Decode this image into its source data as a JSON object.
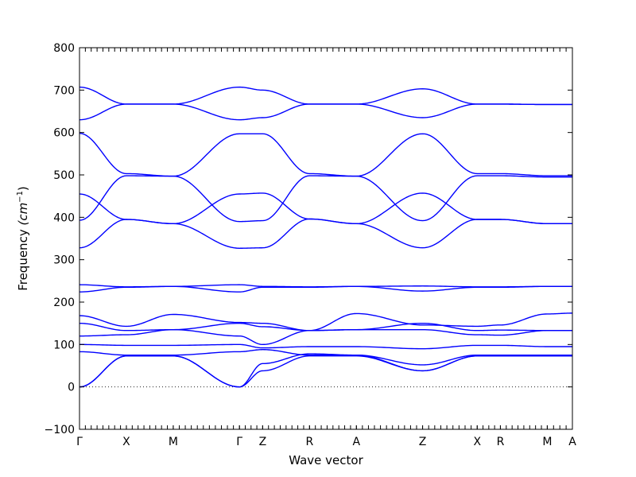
{
  "chart_data": {
    "type": "line",
    "title": "",
    "xlabel": "Wave vector",
    "ylabel": "Frequency",
    "ylabel_unit": "(cm",
    "ylabel_exp": "−1",
    "ylabel_close": ")",
    "ylim": [
      -100,
      800
    ],
    "yticks": [
      -100,
      0,
      100,
      200,
      300,
      400,
      500,
      600,
      700,
      800
    ],
    "zero_line": true,
    "grid": false,
    "legend": "none",
    "line_color": "#0000ff",
    "xlim": [
      0,
      10.2
    ],
    "high_symmetry_points": [
      {
        "label": "Γ",
        "x": 0.0
      },
      {
        "label": "X",
        "x": 0.97
      },
      {
        "label": "M",
        "x": 1.94
      },
      {
        "label": "Γ",
        "x": 3.31
      },
      {
        "label": "Z",
        "x": 3.79
      },
      {
        "label": "R",
        "x": 4.76
      },
      {
        "label": "A",
        "x": 5.73
      },
      {
        "label": "Z",
        "x": 7.1
      },
      {
        "label": "X",
        "x": 8.23
      },
      {
        "label": "R",
        "x": 8.71
      },
      {
        "label": "M",
        "x": 9.68
      },
      {
        "label": "A",
        "x": 10.2
      }
    ],
    "bands": [
      {
        "name": "",
        "x": [
          0,
          0.97,
          1.94,
          3.31,
          3.79,
          4.76,
          5.73,
          7.1,
          8.23,
          8.71,
          9.68,
          10.2
        ],
        "y": [
          707,
          667,
          667,
          707,
          700,
          667,
          667,
          703,
          667,
          667,
          666,
          666
        ]
      },
      {
        "name": "",
        "x": [
          0,
          0.97,
          1.94,
          3.31,
          3.79,
          4.76,
          5.73,
          7.1,
          8.23,
          8.71,
          9.68,
          10.2
        ],
        "y": [
          630,
          667,
          667,
          630,
          635,
          667,
          667,
          635,
          667,
          667,
          666,
          666
        ]
      },
      {
        "name": "",
        "x": [
          0,
          0.97,
          1.94,
          3.31,
          3.79,
          4.76,
          5.73,
          7.1,
          8.23,
          8.71,
          9.68,
          10.2
        ],
        "y": [
          598,
          503,
          497,
          597,
          597,
          503,
          497,
          597,
          503,
          503,
          498,
          498
        ]
      },
      {
        "name": "",
        "x": [
          0,
          0.97,
          1.94,
          3.31,
          3.79,
          4.76,
          5.73,
          7.1,
          8.23,
          8.71,
          9.68,
          10.2
        ],
        "y": [
          393,
          498,
          497,
          390,
          392,
          498,
          497,
          392,
          498,
          498,
          495,
          495
        ]
      },
      {
        "name": "",
        "x": [
          0,
          0.97,
          1.94,
          3.31,
          3.79,
          4.76,
          5.73,
          7.1,
          8.23,
          8.71,
          9.68,
          10.2
        ],
        "y": [
          455,
          395,
          385,
          455,
          457,
          396,
          385,
          457,
          395,
          395,
          385,
          385
        ]
      },
      {
        "name": "",
        "x": [
          0,
          0.97,
          1.94,
          3.31,
          3.79,
          4.76,
          5.73,
          7.1,
          8.23,
          8.71,
          9.68,
          10.2
        ],
        "y": [
          328,
          395,
          385,
          327,
          328,
          396,
          385,
          328,
          395,
          395,
          385,
          385
        ]
      },
      {
        "name": "",
        "x": [
          0,
          0.97,
          1.94,
          3.31,
          3.79,
          4.76,
          5.73,
          7.1,
          8.23,
          8.71,
          9.68,
          10.2
        ],
        "y": [
          241,
          236,
          237,
          241,
          237,
          236,
          237,
          238,
          236,
          236,
          237,
          237
        ]
      },
      {
        "name": "",
        "x": [
          0,
          0.97,
          1.94,
          3.31,
          3.79,
          4.76,
          5.73,
          7.1,
          8.23,
          8.71,
          9.68,
          10.2
        ],
        "y": [
          224,
          235,
          237,
          224,
          235,
          235,
          237,
          226,
          235,
          235,
          237,
          237
        ]
      },
      {
        "name": "",
        "x": [
          0,
          0.97,
          1.94,
          3.31,
          3.79,
          4.76,
          5.73,
          7.1,
          8.23,
          8.71,
          9.68,
          10.2
        ],
        "y": [
          168,
          143,
          171,
          152,
          150,
          133,
          173,
          146,
          143,
          146,
          172,
          174
        ]
      },
      {
        "name": "",
        "x": [
          0,
          0.97,
          1.94,
          3.31,
          3.79,
          4.76,
          5.73,
          7.1,
          8.23,
          8.71,
          9.68,
          10.2
        ],
        "y": [
          150,
          133,
          135,
          150,
          142,
          133,
          135,
          150,
          133,
          134,
          133,
          133
        ]
      },
      {
        "name": "",
        "x": [
          0,
          0.97,
          1.94,
          3.31,
          3.79,
          4.76,
          5.73,
          7.1,
          8.23,
          8.71,
          9.68,
          10.2
        ],
        "y": [
          120,
          123,
          135,
          120,
          100,
          133,
          135,
          135,
          123,
          122,
          133,
          133
        ]
      },
      {
        "name": "",
        "x": [
          0,
          0.97,
          1.94,
          3.31,
          3.79,
          4.76,
          5.73,
          7.1,
          8.23,
          8.71,
          9.68,
          10.2
        ],
        "y": [
          100,
          98,
          98,
          100,
          92,
          95,
          95,
          90,
          98,
          98,
          95,
          95
        ]
      },
      {
        "name": "",
        "x": [
          0,
          0.97,
          1.94,
          3.31,
          3.79,
          4.76,
          5.73,
          7.1,
          8.23,
          8.71,
          9.68,
          10.2
        ],
        "y": [
          83,
          75,
          75,
          83,
          88,
          75,
          75,
          52,
          75,
          75,
          75,
          75
        ]
      },
      {
        "name": "",
        "x": [
          0,
          0.97,
          1.94,
          3.31,
          3.79,
          4.76,
          5.73,
          7.1,
          8.23,
          8.71,
          9.68,
          10.2
        ],
        "y": [
          0,
          73,
          73,
          0,
          55,
          78,
          75,
          38,
          73,
          73,
          73,
          73
        ]
      },
      {
        "name": "",
        "x": [
          0,
          0.97,
          1.94,
          3.31,
          3.79,
          4.76,
          5.73,
          7.1,
          8.23,
          8.71,
          9.68,
          10.2
        ],
        "y": [
          0,
          73,
          73,
          0,
          38,
          73,
          73,
          38,
          73,
          73,
          73,
          73
        ]
      }
    ]
  }
}
